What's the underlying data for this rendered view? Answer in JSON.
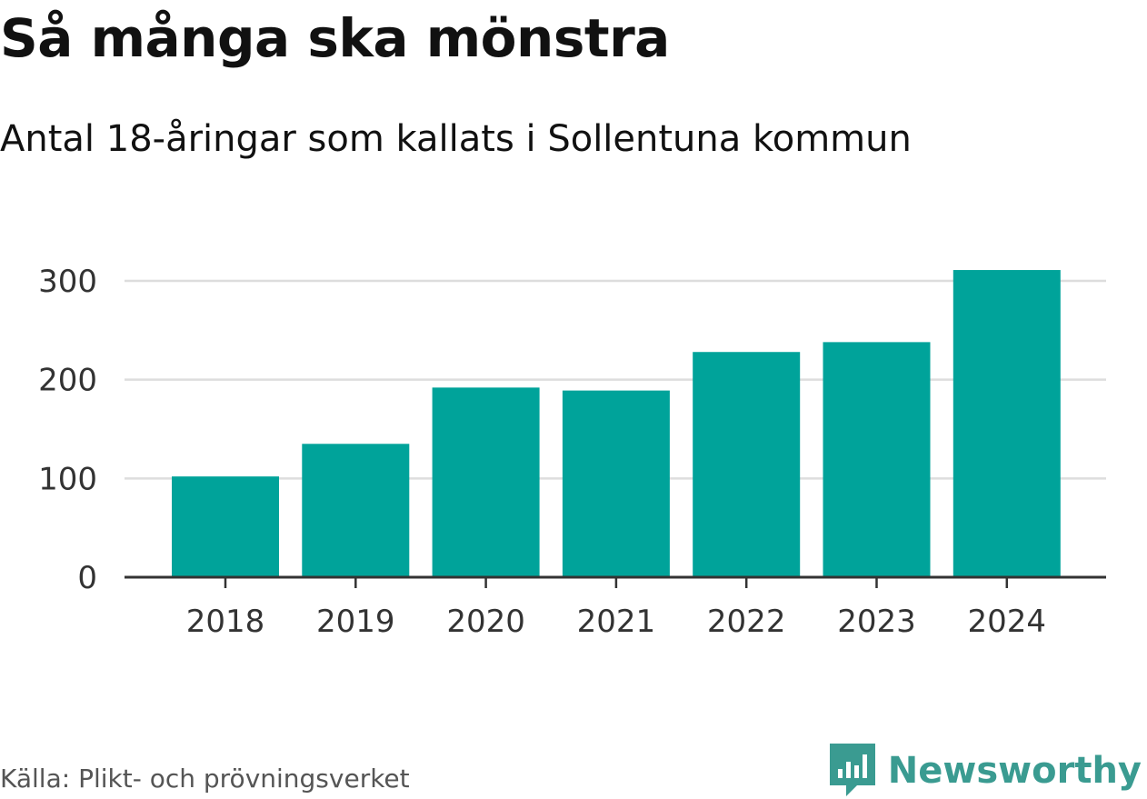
{
  "header": {
    "title": "Så många ska mönstra",
    "subtitle": "Antal 18-åringar som kallats i Sollentuna kommun"
  },
  "footer": {
    "source": "Källa: Plikt- och prövningsverket",
    "brand": "Newsworthy"
  },
  "colors": {
    "bar": "#00A39A",
    "grid": "#dddddd",
    "axis": "#333333",
    "brand": "#3a9b91"
  },
  "chart_data": {
    "type": "bar",
    "title": "Så många ska mönstra",
    "subtitle": "Antal 18-åringar som kallats i Sollentuna kommun",
    "categories": [
      "2018",
      "2019",
      "2020",
      "2021",
      "2022",
      "2023",
      "2024"
    ],
    "values": [
      102,
      135,
      192,
      189,
      228,
      238,
      311
    ],
    "xlabel": "",
    "ylabel": "",
    "ylim": [
      0,
      300
    ],
    "yticks": [
      0,
      100,
      200,
      300
    ],
    "grid": true,
    "legend": "none"
  }
}
